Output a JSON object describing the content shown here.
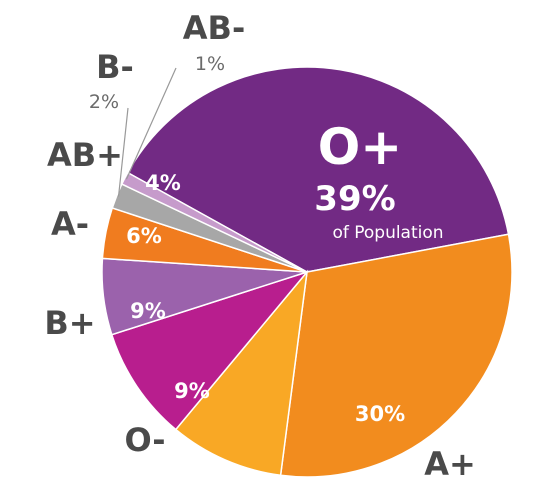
{
  "chart_data": {
    "type": "pie",
    "title": "",
    "slices": [
      {
        "name": "O+",
        "value": 39,
        "pct_label": "39%",
        "sub_label": "of Population",
        "color": "#722a84"
      },
      {
        "name": "A+",
        "value": 30,
        "pct_label": "30%",
        "color": "#f28c1e"
      },
      {
        "name": "O-",
        "value": 9,
        "pct_label": "9%",
        "color": "#f9a825"
      },
      {
        "name": "B+",
        "value": 9,
        "pct_label": "9%",
        "color": "#b81e8e"
      },
      {
        "name": "A-",
        "value": 6,
        "pct_label": "6%",
        "color": "#9b62ac"
      },
      {
        "name": "AB+",
        "value": 4,
        "pct_label": "4%",
        "color": "#f07c1f"
      },
      {
        "name": "B-",
        "value": 2,
        "pct_label": "2%",
        "color": "#a7a7a7"
      },
      {
        "name": "AB-",
        "value": 1,
        "pct_label": "1%",
        "color": "#c69bcb"
      }
    ]
  }
}
